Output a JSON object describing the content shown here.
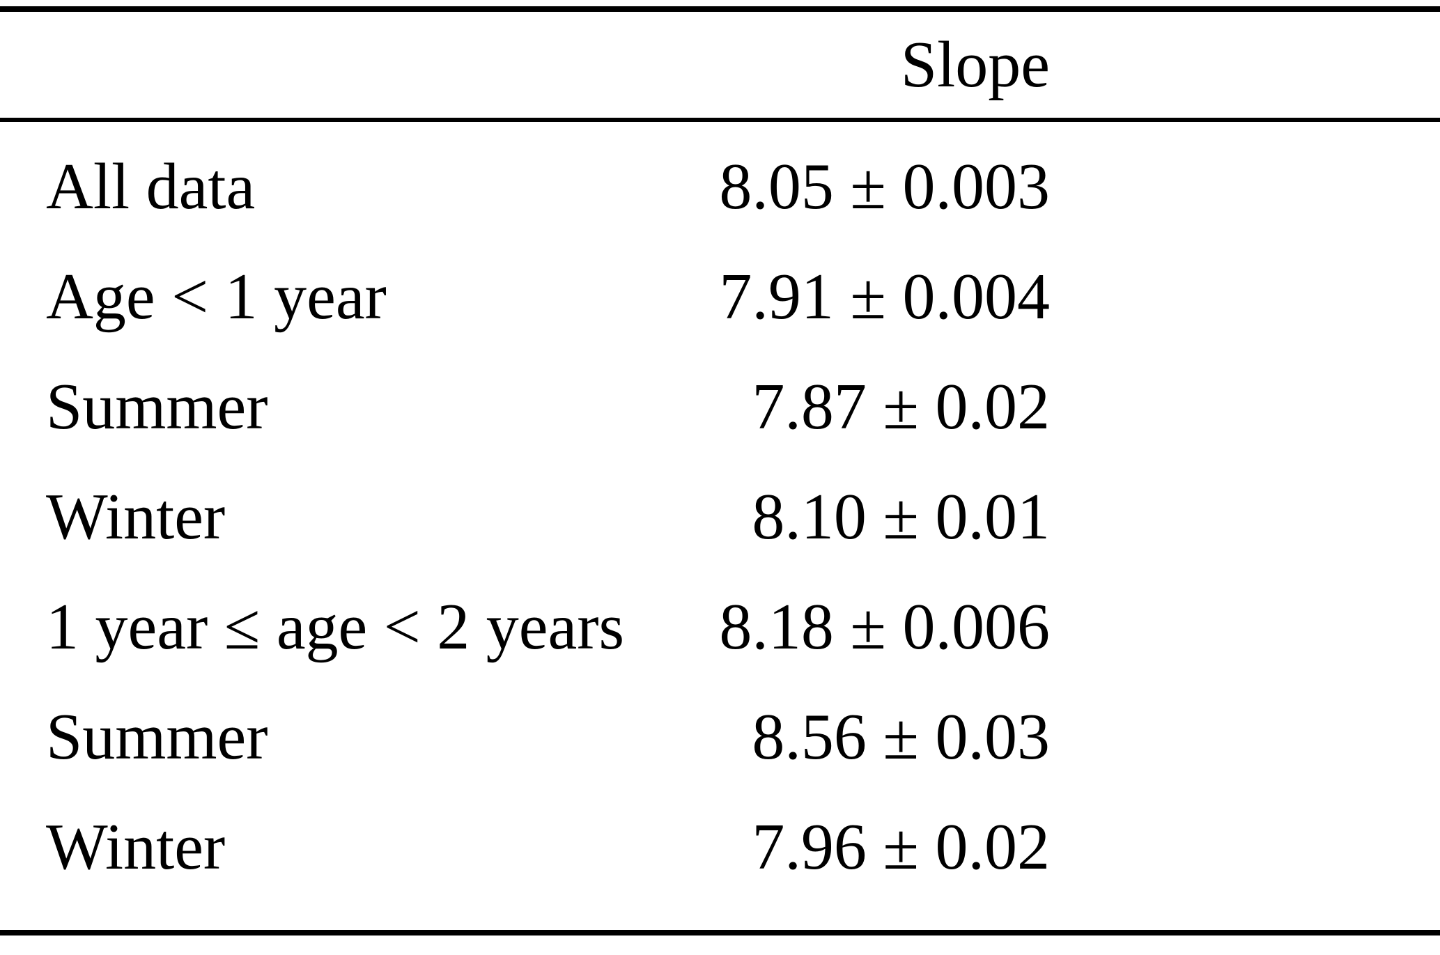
{
  "table": {
    "header": {
      "slope": "Slope"
    },
    "rows": [
      {
        "label": "All data",
        "value": "8.05 ± 0.003"
      },
      {
        "label": "Age < 1 year",
        "value": "7.91 ± 0.004"
      },
      {
        "label": "Summer",
        "value": "7.87 ± 0.02"
      },
      {
        "label": "Winter",
        "value": "8.10 ± 0.01"
      },
      {
        "label": "1 year ≤ age < 2 years",
        "value": "8.18 ± 0.006"
      },
      {
        "label": "Summer",
        "value": "8.56 ± 0.03"
      },
      {
        "label": "Winter",
        "value": "7.96 ± 0.02"
      }
    ],
    "colors": {
      "text": "#000000",
      "background": "#ffffff",
      "rule": "#000000"
    }
  }
}
